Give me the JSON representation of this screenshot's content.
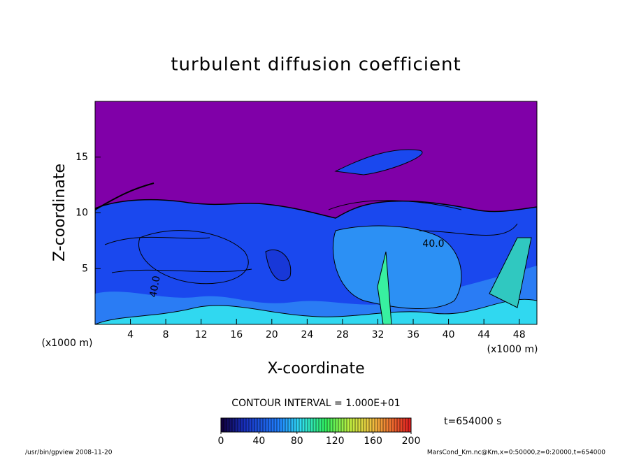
{
  "chart_data": {
    "type": "contour",
    "title": "turbulent diffusion coefficient",
    "x_label": "X-coordinate",
    "y_label": "Z-coordinate",
    "x_unit": "(x1000 m)",
    "x_unit_right": "(x1000 m)",
    "xlim": [
      0,
      50
    ],
    "xticks": [
      4,
      8,
      12,
      16,
      20,
      24,
      28,
      32,
      36,
      40,
      44,
      48
    ],
    "ylim": [
      0,
      20
    ],
    "yticks": [
      5,
      10,
      15
    ],
    "contour_interval": "CONTOUR INTERVAL = 1.000E+01",
    "contour_labels": [
      "40.0",
      "40.0"
    ],
    "colorbar_lim": [
      0,
      200
    ],
    "colorbar_ticks": [
      0,
      40,
      80,
      120,
      160,
      200
    ],
    "time_label": "t=654000 s",
    "footer_left": "/usr/bin/gpview   2008-11-20",
    "footer_right": "MarsCond_Km.nc@Km,x=0:50000,z=0:20000,t=654000"
  }
}
